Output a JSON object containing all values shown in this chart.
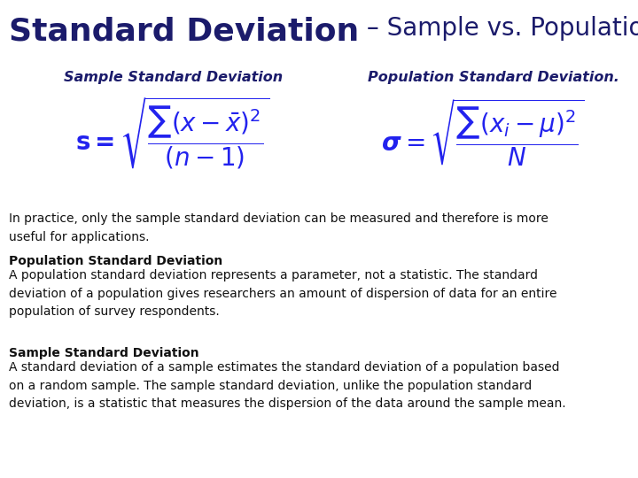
{
  "title_bold": "Standard Deviation",
  "title_dash_thin": " – Sample vs. Population",
  "title_color": "#1b1b6b",
  "title_fontsize_bold": 26,
  "title_fontsize_thin": 20,
  "subtitle_sample": "Sample Standard Deviation",
  "subtitle_population": "Population Standard Deviation.",
  "subtitle_color": "#1b1b6b",
  "subtitle_fontsize": 11.5,
  "formula_color": "#2222ee",
  "formula_fontsize": 20,
  "text_color": "#111111",
  "practice_text": "In practice, only the sample standard deviation can be measured and therefore is more\nuseful for applications.",
  "pop_header": "Population Standard Deviation",
  "pop_body": "A population standard deviation represents a parameter, not a statistic. The standard\ndeviation of a population gives researchers an amount of dispersion of data for an entire\npopulation of survey respondents.",
  "sample_header": "Sample Standard Deviation",
  "sample_body": "A standard deviation of a sample estimates the standard deviation of a population based\non a random sample. The sample standard deviation, unlike the population standard\ndeviation, is a statistic that measures the dispersion of the data around the sample mean.",
  "body_fontsize": 10.0,
  "background_color": "#ffffff"
}
